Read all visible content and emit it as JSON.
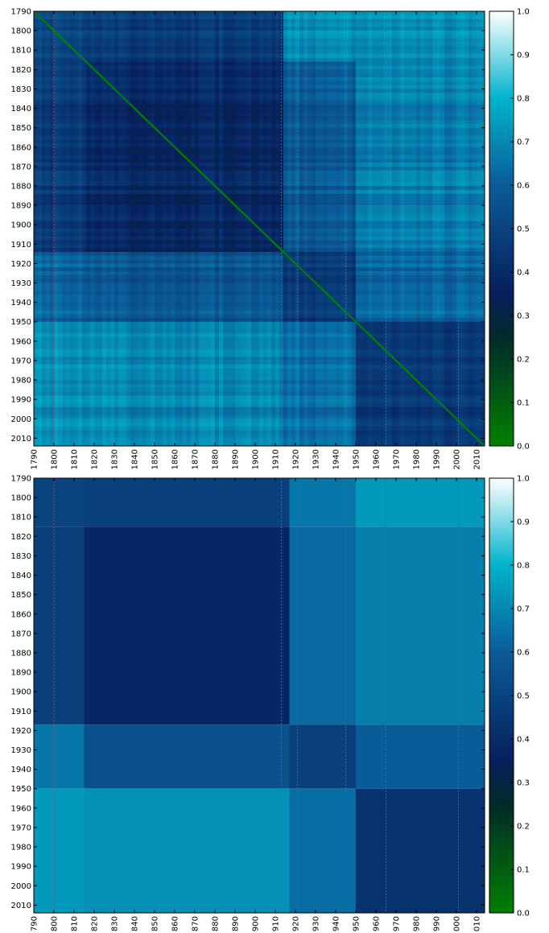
{
  "chart_data": [
    {
      "type": "heatmap",
      "title": "",
      "xlabel": "",
      "ylabel": "",
      "range": [
        1790,
        2014
      ],
      "x_ticks": [
        "1790",
        "1800",
        "1810",
        "1820",
        "1830",
        "1840",
        "1850",
        "1860",
        "1870",
        "1880",
        "1890",
        "1900",
        "1910",
        "1920",
        "1930",
        "1940",
        "1950",
        "1960",
        "1970",
        "1980",
        "1990",
        "2000",
        "2010"
      ],
      "y_ticks": [
        "1790",
        "1800",
        "1810",
        "1820",
        "1830",
        "1840",
        "1850",
        "1860",
        "1870",
        "1880",
        "1890",
        "1900",
        "1910",
        "1920",
        "1930",
        "1940",
        "1950",
        "1960",
        "1970",
        "1980",
        "1990",
        "2000",
        "2010"
      ],
      "diagonal_value": 0.0,
      "blocks": [
        {
          "row": [
            1790,
            1815
          ],
          "col": [
            1790,
            1815
          ],
          "value": 0.52
        },
        {
          "row": [
            1790,
            1815
          ],
          "col": [
            1815,
            1913
          ],
          "value": 0.47
        },
        {
          "row": [
            1790,
            1815
          ],
          "col": [
            1913,
            2014
          ],
          "value": 0.72
        },
        {
          "row": [
            1815,
            1913
          ],
          "col": [
            1790,
            1815
          ],
          "value": 0.47
        },
        {
          "row": [
            1815,
            1913
          ],
          "col": [
            1815,
            1913
          ],
          "value": 0.38
        },
        {
          "row": [
            1815,
            1913
          ],
          "col": [
            1913,
            1950
          ],
          "value": 0.58
        },
        {
          "row": [
            1815,
            1913
          ],
          "col": [
            1950,
            2014
          ],
          "value": 0.68
        },
        {
          "row": [
            1913,
            1950
          ],
          "col": [
            1790,
            1815
          ],
          "value": 0.62
        },
        {
          "row": [
            1913,
            1950
          ],
          "col": [
            1815,
            1913
          ],
          "value": 0.57
        },
        {
          "row": [
            1913,
            1950
          ],
          "col": [
            1913,
            1950
          ],
          "value": 0.46
        },
        {
          "row": [
            1913,
            1950
          ],
          "col": [
            1950,
            2014
          ],
          "value": 0.62
        },
        {
          "row": [
            1950,
            2014
          ],
          "col": [
            1790,
            1815
          ],
          "value": 0.72
        },
        {
          "row": [
            1950,
            2014
          ],
          "col": [
            1815,
            1913
          ],
          "value": 0.7
        },
        {
          "row": [
            1950,
            2014
          ],
          "col": [
            1913,
            1950
          ],
          "value": 0.64
        },
        {
          "row": [
            1950,
            2014
          ],
          "col": [
            1950,
            2014
          ],
          "value": 0.45
        }
      ],
      "reference_lines": [
        1800,
        1913,
        1921,
        1945,
        1965,
        2001
      ],
      "colorbar": {
        "min": 0.0,
        "max": 1.0,
        "ticks": [
          "0.0",
          "0.1",
          "0.2",
          "0.3",
          "0.4",
          "0.5",
          "0.6",
          "0.7",
          "0.8",
          "0.9",
          "1.0"
        ]
      }
    },
    {
      "type": "heatmap",
      "title": "",
      "xlabel": "",
      "ylabel": "",
      "range": [
        1790,
        2014
      ],
      "x_ticks": [
        "790",
        "800",
        "810",
        "820",
        "830",
        "840",
        "850",
        "860",
        "870",
        "880",
        "890",
        "900",
        "910",
        "920",
        "930",
        "940",
        "950",
        "960",
        "970",
        "980",
        "990",
        "000",
        "010"
      ],
      "y_ticks": [
        "1790",
        "1800",
        "1810",
        "1820",
        "1830",
        "1840",
        "1850",
        "1860",
        "1870",
        "1880",
        "1890",
        "1900",
        "1910",
        "1920",
        "1930",
        "1940",
        "1950",
        "1960",
        "1970",
        "1980",
        "1990",
        "2000",
        "2010"
      ],
      "boundaries": [
        1790,
        1815,
        1917,
        1950,
        2014
      ],
      "matrix": [
        [
          0.5,
          0.48,
          0.66,
          0.74
        ],
        [
          0.48,
          0.38,
          0.63,
          0.68
        ],
        [
          0.66,
          0.55,
          0.48,
          0.6
        ],
        [
          0.74,
          0.72,
          0.64,
          0.43
        ]
      ],
      "reference_lines": [
        1800,
        1913,
        1921,
        1945,
        1965,
        2001
      ],
      "colorbar": {
        "min": 0.0,
        "max": 1.0,
        "ticks": [
          "0.0",
          "0.1",
          "0.2",
          "0.3",
          "0.4",
          "0.5",
          "0.6",
          "0.7",
          "0.8",
          "0.9",
          "1.0"
        ]
      }
    }
  ],
  "colors": {
    "reference_line": "#cc3333",
    "colormap": [
      "#008000",
      "#002a2a",
      "#071f5c",
      "#0a5c98",
      "#00b3cc",
      "#ffffff"
    ],
    "colormap_stops": [
      0.0,
      0.25,
      0.35,
      0.6,
      0.8,
      1.0
    ]
  }
}
